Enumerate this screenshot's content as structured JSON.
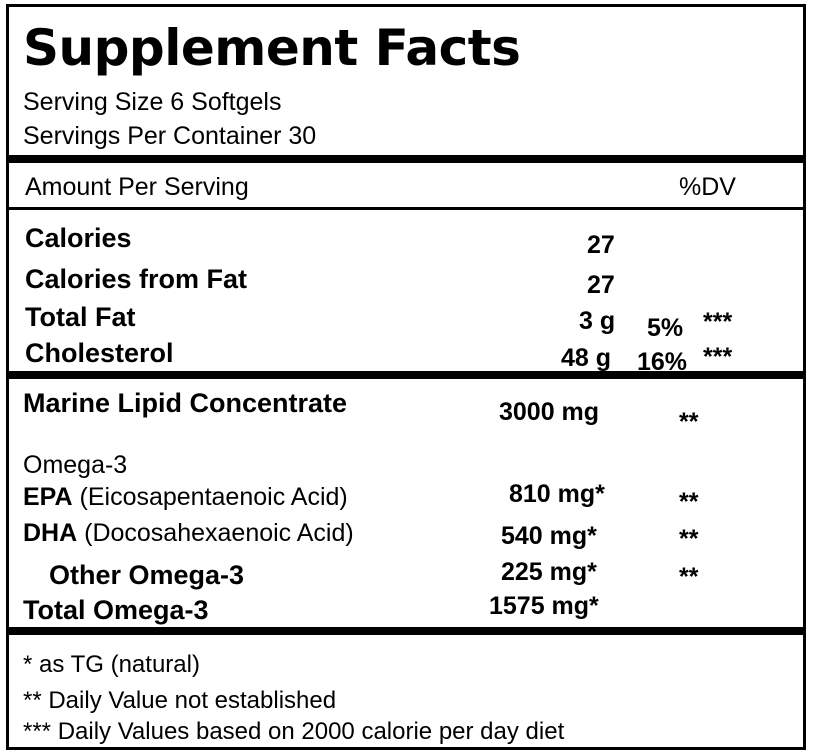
{
  "title": "Supplement Facts",
  "serving_size": "Serving Size  6 Softgels",
  "servings_per_container": "Servings Per Container  30",
  "header": {
    "amount": "Amount Per Serving",
    "dv": "%DV"
  },
  "macros": [
    {
      "label": "Calories",
      "amount": "27",
      "dv": "",
      "note": ""
    },
    {
      "label": "Calories from Fat",
      "amount": "27",
      "dv": "",
      "note": ""
    },
    {
      "label": "Total Fat",
      "amount": "3 g",
      "dv": "5%",
      "note": "***"
    },
    {
      "label": "Cholesterol",
      "amount": "48 g",
      "dv": "16%",
      "note": "***"
    }
  ],
  "lipid": {
    "label": "Marine Lipid Concentrate",
    "amount": "3000 mg",
    "note": "**"
  },
  "omega_heading": "Omega-3",
  "omegas": [
    {
      "label_bold": "EPA",
      "label_rest": " (Eicosapentaenoic Acid)",
      "amount": "810 mg*",
      "note": "**"
    },
    {
      "label_bold": "DHA",
      "label_rest": " (Docosahexaenoic Acid)",
      "amount": "540 mg*",
      "note": "**"
    },
    {
      "label_bold": "Other Omega-3",
      "label_rest": "",
      "amount": "225 mg*",
      "note": "**"
    }
  ],
  "total_omega": {
    "label": "Total Omega-3",
    "amount": "1575 mg*"
  },
  "footnotes": [
    "* as TG (natural)",
    "** Daily Value not established",
    "*** Daily Values based on 2000 calorie per day diet"
  ]
}
